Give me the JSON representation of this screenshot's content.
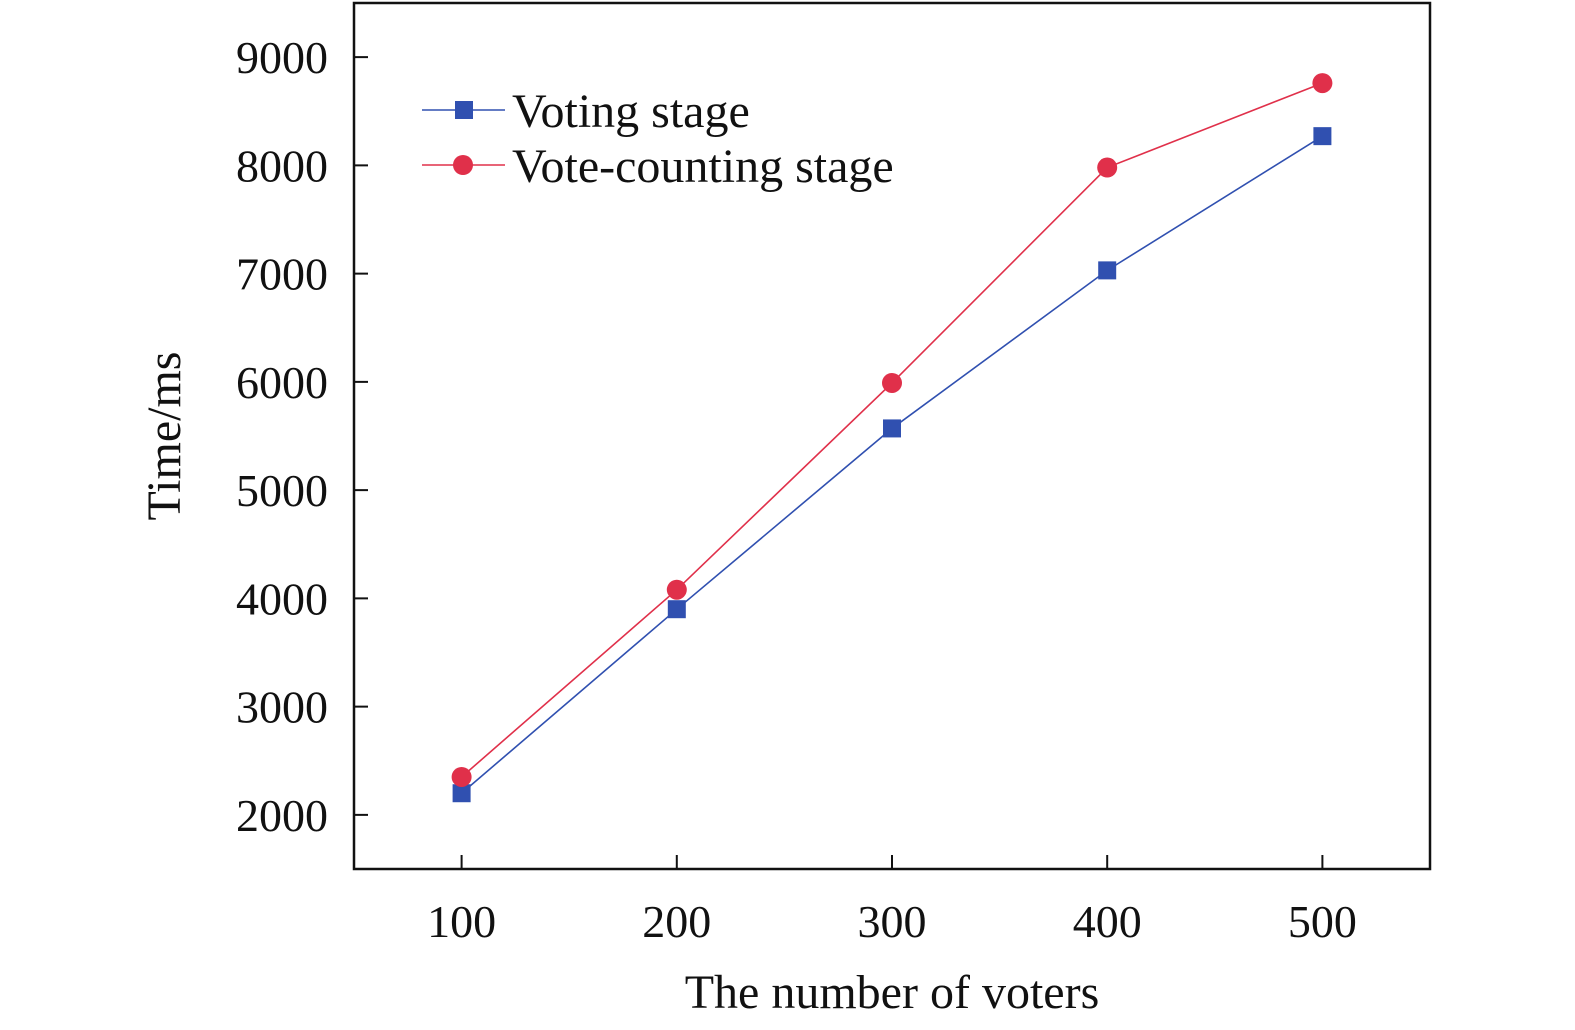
{
  "chart_data": {
    "type": "line",
    "title": "",
    "xlabel": "The number of voters",
    "ylabel": "Time/ms",
    "x": [
      100,
      200,
      300,
      400,
      500
    ],
    "xlim": [
      50,
      550
    ],
    "ylim": [
      1500,
      9500
    ],
    "xticks": [
      100,
      200,
      300,
      400,
      500
    ],
    "yticks": [
      2000,
      3000,
      4000,
      5000,
      6000,
      7000,
      8000,
      9000
    ],
    "grid": false,
    "legend_position": "top-left",
    "series": [
      {
        "name": "Voting stage",
        "values": [
          2200,
          3900,
          5570,
          7030,
          8270
        ],
        "color": "#3050b0",
        "marker": "square"
      },
      {
        "name": "Vote-counting stage",
        "values": [
          2350,
          4080,
          5990,
          7980,
          8760
        ],
        "color": "#e0304a",
        "marker": "circle"
      }
    ]
  }
}
